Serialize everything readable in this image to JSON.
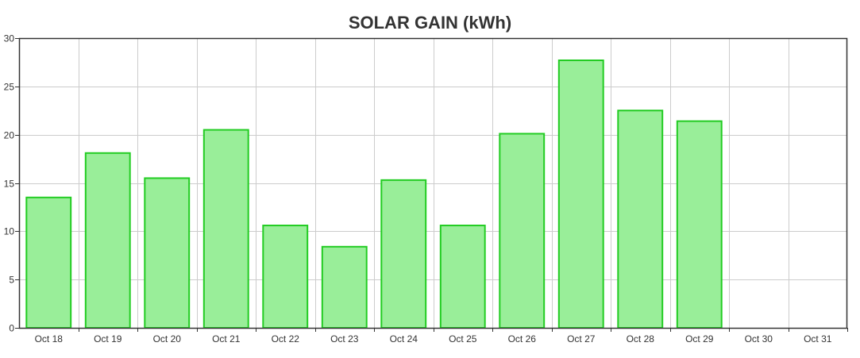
{
  "chart_data": {
    "type": "bar",
    "title": "SOLAR GAIN (kWh)",
    "xlabel": "",
    "ylabel": "",
    "categories": [
      "Oct 18",
      "Oct 19",
      "Oct 20",
      "Oct 21",
      "Oct 22",
      "Oct 23",
      "Oct 24",
      "Oct 25",
      "Oct 26",
      "Oct 27",
      "Oct 28",
      "Oct 29",
      "Oct 30",
      "Oct 31"
    ],
    "values": [
      13.5,
      18.1,
      15.5,
      20.5,
      10.6,
      8.4,
      15.3,
      10.6,
      20.1,
      27.7,
      22.5,
      21.4,
      null,
      null
    ],
    "ylim": [
      0,
      30
    ],
    "yticks": [
      0,
      5,
      10,
      15,
      20,
      25,
      30
    ],
    "grid": true,
    "legend": "none",
    "colors": {
      "bar_fill": "#99ee99",
      "bar_stroke": "#22cc22",
      "grid": "#cccccc",
      "axis": "#333333",
      "text": "#333333"
    }
  }
}
